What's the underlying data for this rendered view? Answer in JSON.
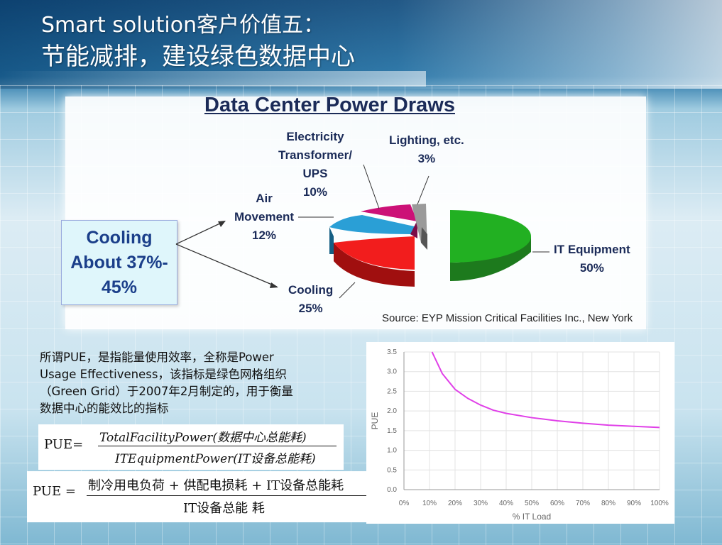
{
  "slide": {
    "title_line1": "Smart solution客户价值五：",
    "title_line2": "节能减排，建设绿色数据中心"
  },
  "power_chart": {
    "title": "Data Center Power Draws",
    "cooling_callout": [
      "Cooling",
      "About 37%-",
      "45%"
    ],
    "slices": [
      {
        "name_lines": [
          "IT Equipment"
        ],
        "percent": "50%",
        "value": 50,
        "color": "#22aa22"
      },
      {
        "name_lines": [
          "Cooling"
        ],
        "percent": "25%",
        "value": 25,
        "color": "#ee1c1c"
      },
      {
        "name_lines": [
          "Air",
          "Movement"
        ],
        "percent": "12%",
        "value": 12,
        "color": "#2a9fd6"
      },
      {
        "name_lines": [
          "Electricity",
          "Transformer/",
          "UPS"
        ],
        "percent": "10%",
        "value": 10,
        "color": "#cc1177"
      },
      {
        "name_lines": [
          "Lighting, etc."
        ],
        "percent": "3%",
        "value": 3,
        "color": "#aaaaaa"
      }
    ],
    "source": "Source: EYP Mission Critical Facilities Inc., New York"
  },
  "description": {
    "lines": [
      "所谓PUE，是指能量使用效率，全称是Power",
      "Usage Effectiveness，该指标是绿色网格组织",
      "（Green Grid）于2007年2月制定的，用于衡量",
      "数据中心的能效比的指标"
    ]
  },
  "formula1": {
    "lhs": "PUE=",
    "numerator": "TotalFacilityPower(数据中心总能耗)",
    "denominator": "ITEquipmentPower(IT设备总能耗)"
  },
  "formula2": {
    "lhs": "PUE  =",
    "numerator": "制冷用电负荷 + 供配电损耗 + IT设备总能耗",
    "denominator": "IT设备总能 耗"
  },
  "chart_data": {
    "type": "line",
    "xlabel": "% IT Load",
    "ylabel": "PUE",
    "x_ticks": [
      "0%",
      "10%",
      "20%",
      "30%",
      "40%",
      "50%",
      "60%",
      "70%",
      "80%",
      "90%",
      "100%"
    ],
    "y_ticks": [
      "0.0",
      "0.5",
      "1.0",
      "1.5",
      "2.0",
      "2.5",
      "3.0",
      "3.5"
    ],
    "xlim": [
      0,
      100
    ],
    "ylim": [
      0,
      3.5
    ],
    "grid": true,
    "series": [
      {
        "color": "#e040e8",
        "x": [
          11,
          15,
          20,
          25,
          30,
          35,
          40,
          50,
          60,
          70,
          80,
          90,
          100
        ],
        "y": [
          3.5,
          2.95,
          2.55,
          2.32,
          2.15,
          2.02,
          1.94,
          1.83,
          1.75,
          1.69,
          1.64,
          1.61,
          1.58
        ]
      }
    ]
  }
}
